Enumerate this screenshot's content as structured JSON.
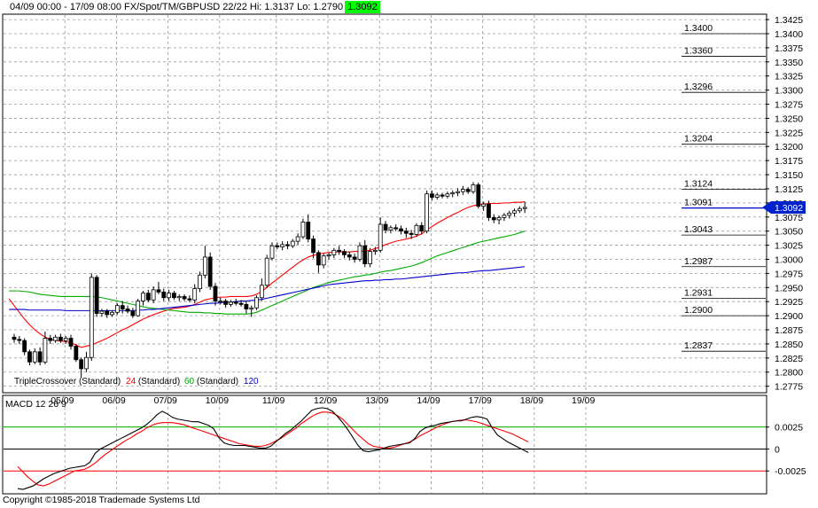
{
  "header": {
    "title": "04/09 00:00 - 17/09 08:00  FX/Spot/TM/GBPUSD 22/22  Hi: 1.3137  Lo: 1.2790",
    "last_price": "1.3092",
    "last_price_color": "#00ff00"
  },
  "footer": {
    "copyright": "Copyright ©1985-2018 Trademade Systems Ltd"
  },
  "colors": {
    "fast_ma": "#ff0000",
    "mid_ma": "#00aa00",
    "slow_ma": "#0000cc",
    "macd": "#000000",
    "signal": "#ff0000",
    "up_candle": "#ffffff",
    "down_candle": "#000000",
    "price_tag": "#0022cc",
    "zero_line": "#000000",
    "upper_line": "#00aa00",
    "lower_line": "#ff0000"
  },
  "legend": {
    "prefix": "TripleCrossover (Standard)",
    "fast": {
      "label": "24",
      "suffix": " (Standard)"
    },
    "mid": {
      "label": "60",
      "suffix": " (Standard)"
    },
    "slow": {
      "label": "120"
    }
  },
  "price_axis_ticks": [
    "1.3425",
    "1.3400",
    "1.3375",
    "1.3350",
    "1.3325",
    "1.3300",
    "1.3275",
    "1.3250",
    "1.3225",
    "1.3200",
    "1.3175",
    "1.3150",
    "1.3125",
    "1.3100",
    "1.3075",
    "1.3050",
    "1.3025",
    "1.3000",
    "1.2975",
    "1.2950",
    "1.2925",
    "1.2900",
    "1.2875",
    "1.2850",
    "1.2825",
    "1.2800",
    "1.2775"
  ],
  "date_ticks": [
    "05/09",
    "06/09",
    "07/09",
    "10/09",
    "11/09",
    "12/09",
    "13/09",
    "14/09",
    "17/09",
    "18/09",
    "19/09"
  ],
  "level_lines": [
    "1.3400",
    "1.3360",
    "1.3296",
    "1.3204",
    "1.3124",
    "1.3091",
    "1.3043",
    "1.2987",
    "1.2931",
    "1.2900",
    "1.2837"
  ],
  "current_price_tag": "1.3092",
  "chart_data": {
    "type": "candlestick",
    "symbol": "GBPUSD",
    "range": "04/09 00:00 - 17/09 08:00",
    "hi": 1.3137,
    "lo": 1.279,
    "ylim": [
      1.2765,
      1.3433
    ],
    "x_labels": [
      "05/09",
      "06/09",
      "07/09",
      "10/09",
      "11/09",
      "12/09",
      "13/09",
      "14/09",
      "17/09",
      "18/09",
      "19/09"
    ],
    "label_bar_index": [
      10,
      20,
      30,
      40,
      51,
      61,
      71,
      81,
      91,
      101,
      111
    ],
    "total_slots": 125,
    "candles": [
      [
        1.2862,
        1.2868,
        1.2852,
        1.2858
      ],
      [
        1.2858,
        1.2864,
        1.285,
        1.2856
      ],
      [
        1.2856,
        1.286,
        1.283,
        1.2836
      ],
      [
        1.2836,
        1.284,
        1.2812,
        1.2818
      ],
      [
        1.2818,
        1.2842,
        1.2814,
        1.2836
      ],
      [
        1.2836,
        1.2844,
        1.2812,
        1.2818
      ],
      [
        1.2818,
        1.2872,
        1.2814,
        1.286
      ],
      [
        1.286,
        1.2866,
        1.285,
        1.2856
      ],
      [
        1.2856,
        1.2866,
        1.2852,
        1.2862
      ],
      [
        1.2862,
        1.2868,
        1.2852,
        1.2856
      ],
      [
        1.2856,
        1.2864,
        1.285,
        1.286
      ],
      [
        1.286,
        1.2866,
        1.284,
        1.2846
      ],
      [
        1.2846,
        1.285,
        1.2818,
        1.2822
      ],
      [
        1.2822,
        1.2826,
        1.279,
        1.2806
      ],
      [
        1.2806,
        1.2836,
        1.28,
        1.2826
      ],
      [
        1.2826,
        1.2975,
        1.282,
        1.2968
      ],
      [
        1.2968,
        1.2972,
        1.2898,
        1.2904
      ],
      [
        1.2904,
        1.2912,
        1.2898,
        1.2908
      ],
      [
        1.2908,
        1.2912,
        1.2896,
        1.2902
      ],
      [
        1.2902,
        1.291,
        1.2898,
        1.2906
      ],
      [
        1.2906,
        1.2922,
        1.2902,
        1.2918
      ],
      [
        1.2918,
        1.2926,
        1.2904,
        1.2912
      ],
      [
        1.2912,
        1.2918,
        1.2904,
        1.2908
      ],
      [
        1.2908,
        1.2914,
        1.2896,
        1.29
      ],
      [
        1.29,
        1.293,
        1.2898,
        1.2926
      ],
      [
        1.2926,
        1.2944,
        1.2918,
        1.294
      ],
      [
        1.294,
        1.2946,
        1.2924,
        1.2928
      ],
      [
        1.2928,
        1.2952,
        1.2922,
        1.2946
      ],
      [
        1.2946,
        1.296,
        1.2938,
        1.2942
      ],
      [
        1.2942,
        1.2948,
        1.2926,
        1.2932
      ],
      [
        1.2932,
        1.2946,
        1.2926,
        1.294
      ],
      [
        1.294,
        1.2944,
        1.2928,
        1.2932
      ],
      [
        1.2932,
        1.2938,
        1.2926,
        1.2934
      ],
      [
        1.2934,
        1.2938,
        1.2926,
        1.293
      ],
      [
        1.293,
        1.2936,
        1.2924,
        1.2928
      ],
      [
        1.2928,
        1.2956,
        1.2922,
        1.2948
      ],
      [
        1.2948,
        1.2978,
        1.2942,
        1.2972
      ],
      [
        1.2972,
        1.3024,
        1.2966,
        1.3004
      ],
      [
        1.3004,
        1.3012,
        1.2946,
        1.2952
      ],
      [
        1.2952,
        1.2958,
        1.2918,
        1.2926
      ],
      [
        1.2926,
        1.2932,
        1.292,
        1.2926
      ],
      [
        1.2926,
        1.293,
        1.2914,
        1.292
      ],
      [
        1.292,
        1.2928,
        1.2916,
        1.2924
      ],
      [
        1.2924,
        1.293,
        1.2918,
        1.2922
      ],
      [
        1.2922,
        1.2928,
        1.2916,
        1.292
      ],
      [
        1.292,
        1.2926,
        1.2904,
        1.2912
      ],
      [
        1.2912,
        1.2918,
        1.2898,
        1.2914
      ],
      [
        1.2914,
        1.2936,
        1.291,
        1.2932
      ],
      [
        1.2932,
        1.2966,
        1.2926,
        1.2954
      ],
      [
        1.2954,
        1.3008,
        1.295,
        1.3002
      ],
      [
        1.3002,
        1.303,
        1.2998,
        1.3024
      ],
      [
        1.3024,
        1.303,
        1.3018,
        1.3022
      ],
      [
        1.3022,
        1.3032,
        1.3016,
        1.3026
      ],
      [
        1.3026,
        1.3032,
        1.3018,
        1.3024
      ],
      [
        1.3024,
        1.3036,
        1.302,
        1.3032
      ],
      [
        1.3032,
        1.3046,
        1.3026,
        1.304
      ],
      [
        1.304,
        1.3072,
        1.3036,
        1.3066
      ],
      [
        1.3066,
        1.308,
        1.303,
        1.3036
      ],
      [
        1.3036,
        1.3042,
        1.3002,
        1.3012
      ],
      [
        1.3012,
        1.3016,
        1.2976,
        1.299
      ],
      [
        1.299,
        1.301,
        1.2984,
        1.3006
      ],
      [
        1.3006,
        1.3012,
        1.3,
        1.3008
      ],
      [
        1.3008,
        1.302,
        1.3002,
        1.3016
      ],
      [
        1.3016,
        1.3024,
        1.3008,
        1.3014
      ],
      [
        1.3014,
        1.3018,
        1.3002,
        1.3008
      ],
      [
        1.3008,
        1.3014,
        1.2998,
        1.3004
      ],
      [
        1.3004,
        1.301,
        1.2994,
        1.3
      ],
      [
        1.3,
        1.303,
        1.2996,
        1.3024
      ],
      [
        1.3024,
        1.3034,
        1.2986,
        1.2992
      ],
      [
        1.2992,
        1.302,
        1.2986,
        1.3014
      ],
      [
        1.3014,
        1.3022,
        1.3008,
        1.3016
      ],
      [
        1.3016,
        1.3074,
        1.3012,
        1.3062
      ],
      [
        1.3062,
        1.3068,
        1.3046,
        1.3052
      ],
      [
        1.3052,
        1.306,
        1.3046,
        1.3056
      ],
      [
        1.3056,
        1.3062,
        1.305,
        1.3054
      ],
      [
        1.3054,
        1.306,
        1.3044,
        1.305
      ],
      [
        1.305,
        1.3056,
        1.3038,
        1.3046
      ],
      [
        1.3046,
        1.3052,
        1.3036,
        1.3044
      ],
      [
        1.3044,
        1.3064,
        1.304,
        1.306
      ],
      [
        1.306,
        1.3066,
        1.3044,
        1.305
      ],
      [
        1.305,
        1.3122,
        1.3046,
        1.3116
      ],
      [
        1.3116,
        1.3122,
        1.3104,
        1.311
      ],
      [
        1.311,
        1.3118,
        1.3106,
        1.3114
      ],
      [
        1.3114,
        1.3118,
        1.3108,
        1.3112
      ],
      [
        1.3112,
        1.312,
        1.3108,
        1.3116
      ],
      [
        1.3116,
        1.3122,
        1.311,
        1.3118
      ],
      [
        1.3118,
        1.3126,
        1.3112,
        1.312
      ],
      [
        1.312,
        1.313,
        1.3114,
        1.3124
      ],
      [
        1.3124,
        1.3128,
        1.3116,
        1.312
      ],
      [
        1.312,
        1.3137,
        1.3116,
        1.3132
      ],
      [
        1.3132,
        1.3136,
        1.309,
        1.3094
      ],
      [
        1.3094,
        1.3102,
        1.3086,
        1.3098
      ],
      [
        1.3098,
        1.3104,
        1.3068,
        1.3074
      ],
      [
        1.3074,
        1.308,
        1.3064,
        1.307
      ],
      [
        1.307,
        1.3078,
        1.3062,
        1.3074
      ],
      [
        1.3074,
        1.3082,
        1.3068,
        1.3078
      ],
      [
        1.3078,
        1.3086,
        1.3072,
        1.3082
      ],
      [
        1.3082,
        1.309,
        1.3076,
        1.3086
      ],
      [
        1.3086,
        1.3094,
        1.3082,
        1.309
      ],
      [
        1.309,
        1.3102,
        1.3082,
        1.3092
      ]
    ],
    "indicator": "TripleCrossover (Standard)",
    "overlays": [
      {
        "name": "24",
        "color": "#ff0000",
        "values": [
          1.293,
          1.2918,
          1.2906,
          1.2894,
          1.2884,
          1.2875,
          1.2868,
          1.2862,
          1.2858,
          1.2856,
          1.2855,
          1.2854,
          1.2852,
          1.2848,
          1.2844,
          1.2846,
          1.2848,
          1.2852,
          1.2856,
          1.286,
          1.2865,
          1.287,
          1.2875,
          1.2879,
          1.2884,
          1.2889,
          1.2894,
          1.2898,
          1.2902,
          1.2905,
          1.2908,
          1.2911,
          1.2913,
          1.2914,
          1.2915,
          1.2917,
          1.292,
          1.2924,
          1.2928,
          1.293,
          1.2932,
          1.2933,
          1.2933,
          1.2934,
          1.2934,
          1.2934,
          1.2934,
          1.2935,
          1.2938,
          1.2943,
          1.295,
          1.2958,
          1.2965,
          1.2972,
          1.2979,
          1.2986,
          1.2993,
          1.2999,
          1.3004,
          1.3007,
          1.3009,
          1.3011,
          1.3012,
          1.3013,
          1.3013,
          1.3013,
          1.3013,
          1.3014,
          1.3014,
          1.3015,
          1.3016,
          1.3019,
          1.3022,
          1.3026,
          1.3029,
          1.3032,
          1.3034,
          1.3036,
          1.3038,
          1.3041,
          1.3045,
          1.3052,
          1.3058,
          1.3064,
          1.3069,
          1.3074,
          1.3079,
          1.3083,
          1.3088,
          1.3092,
          1.3095,
          1.3097,
          1.3098,
          1.3099,
          1.3099,
          1.3099,
          1.31,
          1.31,
          1.3101,
          1.3101,
          1.3102
        ]
      },
      {
        "name": "60",
        "color": "#00aa00",
        "values": [
          1.2944,
          1.2944,
          1.2944,
          1.2943,
          1.2942,
          1.294,
          1.2938,
          1.2937,
          1.2936,
          1.2935,
          1.2934,
          1.2934,
          1.2934,
          1.2934,
          1.2934,
          1.2934,
          1.2934,
          1.2933,
          1.2932,
          1.293,
          1.2928,
          1.2926,
          1.2924,
          1.2922,
          1.292,
          1.2918,
          1.2916,
          1.2914,
          1.2913,
          1.2912,
          1.2911,
          1.291,
          1.2909,
          1.2908,
          1.2907,
          1.2906,
          1.2906,
          1.2906,
          1.2905,
          1.2905,
          1.2904,
          1.2904,
          1.2903,
          1.2903,
          1.2903,
          1.2903,
          1.2903,
          1.2904,
          1.2906,
          1.291,
          1.2914,
          1.2918,
          1.2922,
          1.2926,
          1.293,
          1.2934,
          1.2938,
          1.2942,
          1.2946,
          1.295,
          1.2953,
          1.2956,
          1.2959,
          1.2961,
          1.2963,
          1.2965,
          1.2967,
          1.2969,
          1.297,
          1.2972,
          1.2973,
          1.2975,
          1.2977,
          1.2979,
          1.298,
          1.2982,
          1.2984,
          1.2986,
          1.2988,
          1.2991,
          1.2994,
          1.2998,
          1.3002,
          1.3006,
          1.3009,
          1.3012,
          1.3015,
          1.3018,
          1.3021,
          1.3024,
          1.3027,
          1.303,
          1.3032,
          1.3034,
          1.3036,
          1.3038,
          1.304,
          1.3042,
          1.3044,
          1.3047,
          1.305
        ]
      },
      {
        "name": "120",
        "color": "#0000cc",
        "values": [
          1.2911,
          1.2911,
          1.2911,
          1.2911,
          1.291,
          1.291,
          1.291,
          1.291,
          1.291,
          1.291,
          1.291,
          1.2909,
          1.2909,
          1.2909,
          1.2909,
          1.2909,
          1.2909,
          1.2909,
          1.2909,
          1.2909,
          1.2909,
          1.2909,
          1.2909,
          1.2909,
          1.2909,
          1.291,
          1.291,
          1.2911,
          1.2911,
          1.2912,
          1.2913,
          1.2914,
          1.2915,
          1.2916,
          1.2917,
          1.2918,
          1.2919,
          1.292,
          1.2921,
          1.2922,
          1.2922,
          1.2923,
          1.2924,
          1.2924,
          1.2925,
          1.2926,
          1.2926,
          1.2927,
          1.2928,
          1.2929,
          1.2931,
          1.2933,
          1.2935,
          1.2937,
          1.2939,
          1.2941,
          1.2943,
          1.2945,
          1.2947,
          1.2949,
          1.2951,
          1.2953,
          1.2955,
          1.2956,
          1.2957,
          1.2958,
          1.2959,
          1.296,
          1.2961,
          1.2962,
          1.2962,
          1.2963,
          1.2963,
          1.2964,
          1.2964,
          1.2965,
          1.2965,
          1.2966,
          1.2967,
          1.2968,
          1.2969,
          1.297,
          1.2971,
          1.2972,
          1.2973,
          1.2974,
          1.2975,
          1.2976,
          1.2976,
          1.2977,
          1.2978,
          1.2979,
          1.298,
          1.298,
          1.2981,
          1.2982,
          1.2983,
          1.2984,
          1.2985,
          1.2986,
          1.2987
        ]
      }
    ],
    "macd": {
      "label": "MACD 12 26 9",
      "ylim": [
        -0.005,
        0.006
      ],
      "ticks": [
        0.0025,
        0,
        -0.0025
      ],
      "tick_labels": [
        "0.0025",
        "0",
        "-0.0025"
      ],
      "reference_lines": [
        0.0025,
        0,
        -0.0025
      ],
      "macd": [
        -0.0045,
        -0.0046,
        -0.0044,
        -0.0042,
        -0.0038,
        -0.0034,
        -0.0031,
        -0.0028,
        -0.0026,
        -0.0024,
        -0.0022,
        -0.0021,
        -0.002,
        -0.0019,
        -0.0015,
        -0.0005,
        0.0,
        0.0003,
        0.0006,
        0.0009,
        0.0012,
        0.0015,
        0.0018,
        0.0021,
        0.0024,
        0.0028,
        0.0033,
        0.0039,
        0.0043,
        0.004,
        0.0036,
        0.0034,
        0.0033,
        0.0032,
        0.0031,
        0.0031,
        0.0029,
        0.0027,
        0.0023,
        0.0013,
        0.0007,
        0.0005,
        0.0004,
        0.0004,
        0.0004,
        0.0003,
        0.0002,
        0.0001,
        0.0001,
        0.0003,
        0.0008,
        0.0013,
        0.0018,
        0.0022,
        0.0027,
        0.0032,
        0.0038,
        0.0044,
        0.0046,
        0.0047,
        0.0046,
        0.0043,
        0.0037,
        0.003,
        0.0022,
        0.0013,
        0.0004,
        -0.0002,
        -0.0003,
        -0.0002,
        -0.0001,
        0.0001,
        0.0003,
        0.0004,
        0.0005,
        0.0006,
        0.0007,
        0.0012,
        0.002,
        0.0024,
        0.0026,
        0.0027,
        0.0029,
        0.003,
        0.0031,
        0.0032,
        0.0032,
        0.0034,
        0.0036,
        0.0037,
        0.0036,
        0.0034,
        0.0024,
        0.0016,
        0.0012,
        0.0008,
        0.0005,
        0.0002,
        -0.0001,
        -0.0004
      ],
      "signal": [
        -0.002,
        -0.0026,
        -0.0032,
        -0.0037,
        -0.0041,
        -0.0042,
        -0.004,
        -0.0037,
        -0.0034,
        -0.0031,
        -0.0028,
        -0.0025,
        -0.0024,
        -0.0023,
        -0.002,
        -0.0016,
        -0.0011,
        -0.0006,
        -0.0002,
        0.0002,
        0.0006,
        0.001,
        0.0013,
        0.0017,
        0.002,
        0.0024,
        0.0027,
        0.0029,
        0.003,
        0.003,
        0.003,
        0.0029,
        0.0028,
        0.0026,
        0.0024,
        0.0022,
        0.002,
        0.0018,
        0.0016,
        0.0014,
        0.0012,
        0.001,
        0.0008,
        0.0006,
        0.0005,
        0.0004,
        0.0003,
        0.0003,
        0.0004,
        0.0006,
        0.0009,
        0.0012,
        0.0016,
        0.002,
        0.0024,
        0.0029,
        0.0033,
        0.0037,
        0.004,
        0.0042,
        0.0042,
        0.0041,
        0.0038,
        0.0034,
        0.0028,
        0.0022,
        0.0016,
        0.0011,
        0.0006,
        0.0003,
        0.0002,
        0.0001,
        0.0001,
        0.0002,
        0.0004,
        0.0006,
        0.0008,
        0.0011,
        0.0015,
        0.0018,
        0.0021,
        0.0024,
        0.0027,
        0.0029,
        0.0031,
        0.0032,
        0.0033,
        0.0033,
        0.0032,
        0.0031,
        0.0029,
        0.0027,
        0.0025,
        0.0023,
        0.0021,
        0.0019,
        0.0017,
        0.0014,
        0.0011,
        0.0008
      ]
    }
  }
}
